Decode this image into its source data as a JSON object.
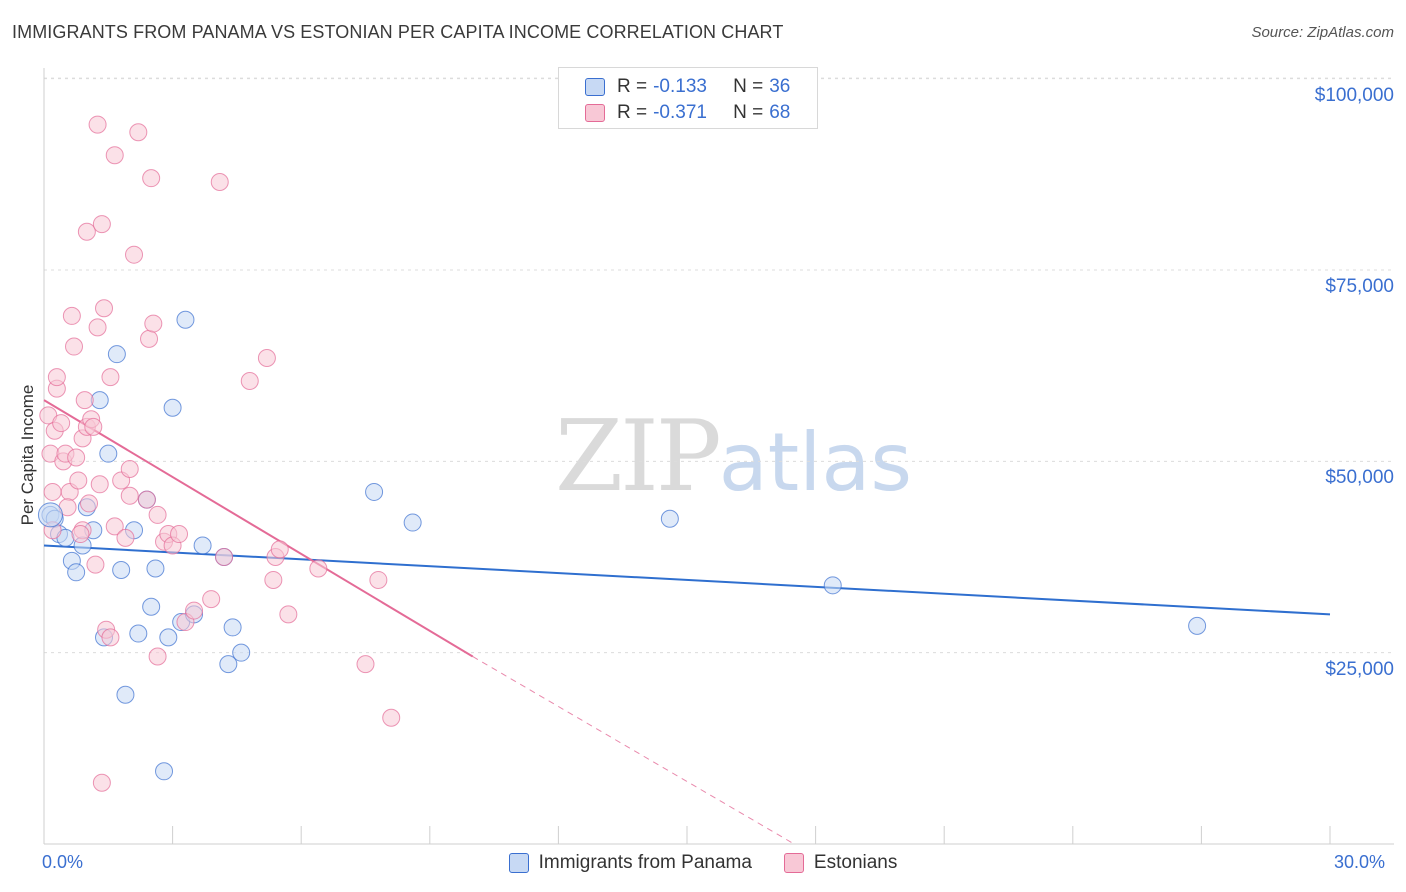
{
  "title": "IMMIGRANTS FROM PANAMA VS ESTONIAN PER CAPITA INCOME CORRELATION CHART",
  "source": "Source: ZipAtlas.com",
  "watermark": {
    "zip": "ZIP",
    "atlas": "atlas"
  },
  "colors": {
    "blue": "#3a6fd0",
    "blue_fill": "#c7d9f4",
    "blue_line": "#2f6fcf",
    "pink_fill": "#f8c8d6",
    "pink_line": "#e46b97"
  },
  "legend_top": {
    "r_label": "R =",
    "n_label": "N =",
    "rows": [
      {
        "r": "-0.133",
        "n": "36"
      },
      {
        "r": "-0.371",
        "n": "68"
      }
    ]
  },
  "legend_bottom": [
    "Immigrants from Panama",
    "Estonians"
  ],
  "chart_data": {
    "type": "scatter",
    "title": "IMMIGRANTS FROM PANAMA VS ESTONIAN PER CAPITA INCOME CORRELATION CHART",
    "xlabel": "",
    "ylabel": "Per Capita Income",
    "xlim": [
      0,
      30
    ],
    "ylim": [
      0,
      105000
    ],
    "x_tick_labels": [
      "0.0%",
      "30.0%"
    ],
    "y_ticks": [
      25000,
      50000,
      75000,
      100000
    ],
    "y_tick_labels": [
      "$25,000",
      "$50,000",
      "$75,000",
      "$100,000"
    ],
    "series": [
      {
        "name": "Immigrants from Panama",
        "R": -0.133,
        "N": 36,
        "trend": {
          "x0": 0,
          "y0": 39000,
          "x1": 30,
          "y1": 30000
        },
        "points": [
          [
            0.15,
            43000
          ],
          [
            0.25,
            42500
          ],
          [
            0.35,
            40500
          ],
          [
            0.5,
            40000
          ],
          [
            0.65,
            37000
          ],
          [
            0.75,
            35500
          ],
          [
            0.9,
            39000
          ],
          [
            1.0,
            44000
          ],
          [
            1.15,
            41000
          ],
          [
            1.3,
            58000
          ],
          [
            1.4,
            27000
          ],
          [
            1.5,
            51000
          ],
          [
            1.7,
            64000
          ],
          [
            1.8,
            35800
          ],
          [
            1.9,
            19500
          ],
          [
            2.1,
            41000
          ],
          [
            2.2,
            27500
          ],
          [
            2.4,
            45000
          ],
          [
            2.5,
            31000
          ],
          [
            2.6,
            36000
          ],
          [
            2.8,
            9500
          ],
          [
            2.9,
            27000
          ],
          [
            3.0,
            57000
          ],
          [
            3.2,
            29000
          ],
          [
            3.3,
            68500
          ],
          [
            3.5,
            30000
          ],
          [
            3.7,
            39000
          ],
          [
            4.2,
            37500
          ],
          [
            4.3,
            23500
          ],
          [
            4.4,
            28300
          ],
          [
            4.6,
            25000
          ],
          [
            7.7,
            46000
          ],
          [
            8.6,
            42000
          ],
          [
            14.6,
            42500
          ],
          [
            18.4,
            33800
          ],
          [
            26.9,
            28500
          ]
        ]
      },
      {
        "name": "Estonians",
        "R": -0.371,
        "N": 68,
        "trend": {
          "x0": 0,
          "y0": 58000,
          "x1": 10,
          "y1": 24500,
          "dash_x1": 17.5,
          "dash_y1": -500
        },
        "points": [
          [
            0.1,
            56000
          ],
          [
            0.15,
            51000
          ],
          [
            0.2,
            46000
          ],
          [
            0.2,
            41000
          ],
          [
            0.25,
            54000
          ],
          [
            0.3,
            59500
          ],
          [
            0.3,
            61000
          ],
          [
            0.4,
            55000
          ],
          [
            0.45,
            50000
          ],
          [
            0.5,
            51000
          ],
          [
            0.6,
            46000
          ],
          [
            0.65,
            69000
          ],
          [
            0.7,
            65000
          ],
          [
            0.75,
            50500
          ],
          [
            0.8,
            47500
          ],
          [
            0.9,
            41000
          ],
          [
            0.9,
            53000
          ],
          [
            0.95,
            58000
          ],
          [
            1.0,
            80000
          ],
          [
            1.0,
            54500
          ],
          [
            1.05,
            44500
          ],
          [
            1.1,
            55500
          ],
          [
            1.2,
            36500
          ],
          [
            1.25,
            67500
          ],
          [
            1.25,
            94000
          ],
          [
            1.3,
            47000
          ],
          [
            1.35,
            81000
          ],
          [
            1.4,
            70000
          ],
          [
            1.45,
            28000
          ],
          [
            1.55,
            27000
          ],
          [
            1.55,
            61000
          ],
          [
            1.65,
            41500
          ],
          [
            1.65,
            90000
          ],
          [
            1.8,
            47500
          ],
          [
            1.9,
            40000
          ],
          [
            2.0,
            45500
          ],
          [
            2.0,
            49000
          ],
          [
            2.1,
            77000
          ],
          [
            2.2,
            93000
          ],
          [
            2.4,
            45000
          ],
          [
            2.45,
            66000
          ],
          [
            2.5,
            87000
          ],
          [
            2.55,
            68000
          ],
          [
            2.65,
            43000
          ],
          [
            2.65,
            24500
          ],
          [
            2.8,
            39500
          ],
          [
            2.9,
            40500
          ],
          [
            3.0,
            39000
          ],
          [
            3.15,
            40500
          ],
          [
            3.3,
            29000
          ],
          [
            3.5,
            30500
          ],
          [
            3.9,
            32000
          ],
          [
            4.1,
            86500
          ],
          [
            4.2,
            37500
          ],
          [
            4.8,
            60500
          ],
          [
            5.2,
            63500
          ],
          [
            5.35,
            34500
          ],
          [
            5.4,
            37500
          ],
          [
            5.5,
            38500
          ],
          [
            5.7,
            30000
          ],
          [
            6.4,
            36000
          ],
          [
            7.5,
            23500
          ],
          [
            7.8,
            34500
          ],
          [
            8.1,
            16500
          ],
          [
            1.35,
            8000
          ],
          [
            0.85,
            40500
          ],
          [
            1.15,
            54500
          ],
          [
            0.55,
            44000
          ]
        ]
      }
    ]
  }
}
